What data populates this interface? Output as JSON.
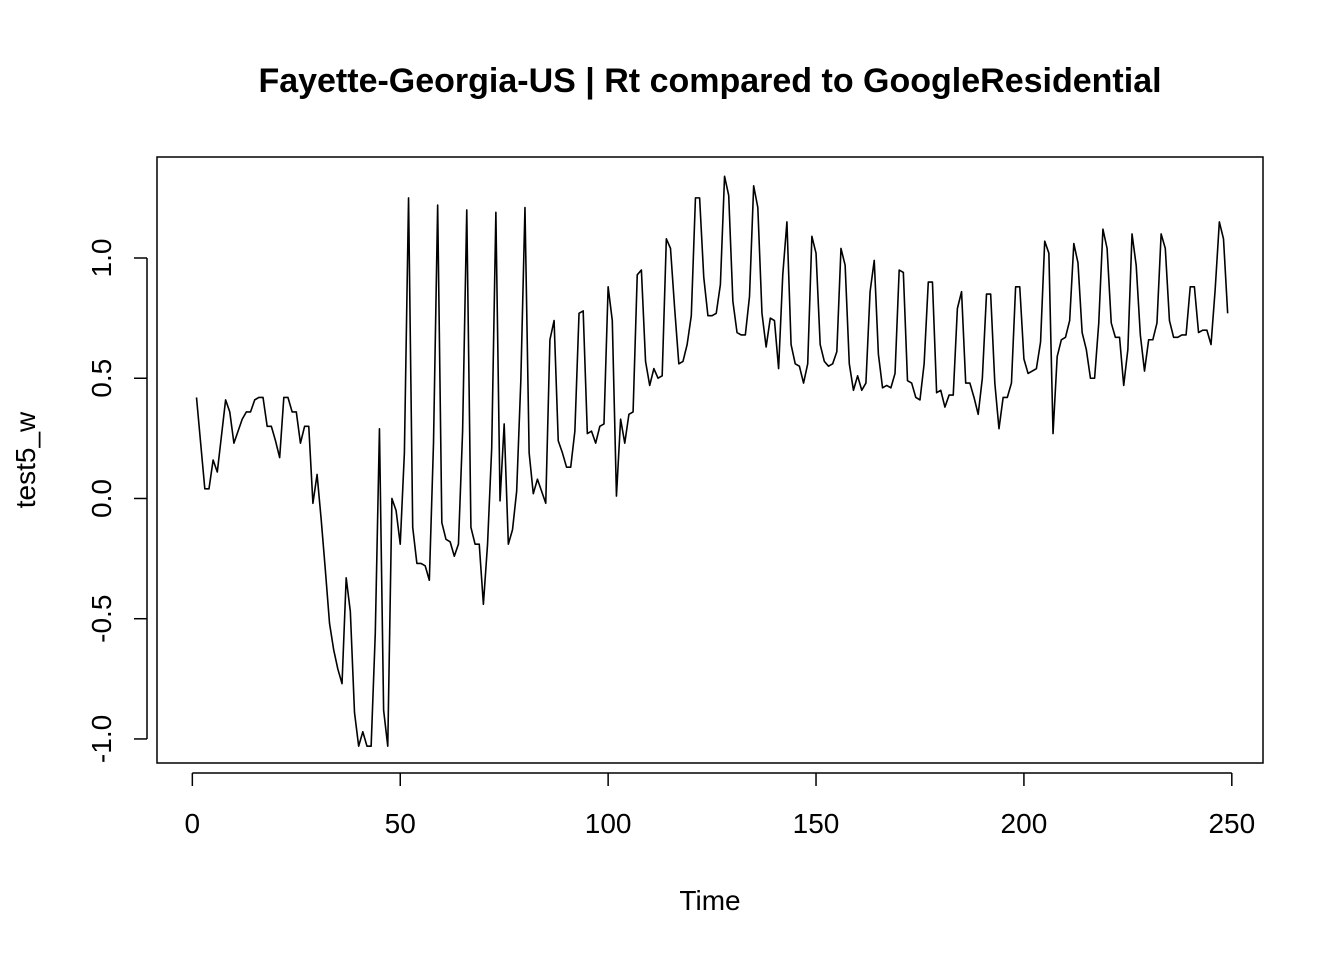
{
  "chart_data": {
    "type": "line",
    "title": "Fayette-Georgia-US | Rt compared to GoogleResidential",
    "xlabel": "Time",
    "ylabel": "test5_w",
    "xlim": [
      -8.5,
      257.5
    ],
    "ylim": [
      -1.1,
      1.42
    ],
    "x_ticks": [
      0,
      50,
      100,
      150,
      200,
      250
    ],
    "y_ticks": [
      -1.0,
      -0.5,
      0.0,
      0.5,
      1.0
    ],
    "x_tick_labels": [
      "0",
      "50",
      "100",
      "150",
      "200",
      "250"
    ],
    "y_tick_labels": [
      "-1.0",
      "-0.5",
      "0.0",
      "0.5",
      "1.0"
    ],
    "grid": false,
    "legend": "none",
    "line_color": "#000000",
    "series": [
      {
        "x_start": 1,
        "values": [
          0.42,
          0.23,
          0.04,
          0.04,
          0.16,
          0.11,
          0.26,
          0.41,
          0.36,
          0.23,
          0.28,
          0.33,
          0.36,
          0.36,
          0.41,
          0.42,
          0.42,
          0.3,
          0.3,
          0.24,
          0.17,
          0.42,
          0.42,
          0.36,
          0.36,
          0.23,
          0.3,
          0.3,
          -0.02,
          0.1,
          -0.09,
          -0.3,
          -0.52,
          -0.63,
          -0.71,
          -0.77,
          -0.33,
          -0.47,
          -0.89,
          -1.03,
          -0.97,
          -1.03,
          -1.03,
          -0.56,
          0.29,
          -0.88,
          -1.03,
          0.0,
          -0.05,
          -0.19,
          0.19,
          1.25,
          -0.12,
          -0.27,
          -0.27,
          -0.28,
          -0.34,
          0.23,
          1.22,
          -0.1,
          -0.17,
          -0.18,
          -0.24,
          -0.19,
          0.28,
          1.2,
          -0.12,
          -0.19,
          -0.19,
          -0.44,
          -0.19,
          0.21,
          1.19,
          -0.01,
          0.31,
          -0.19,
          -0.13,
          0.03,
          0.49,
          1.21,
          0.19,
          0.02,
          0.08,
          0.03,
          -0.02,
          0.66,
          0.74,
          0.24,
          0.19,
          0.13,
          0.13,
          0.28,
          0.77,
          0.78,
          0.27,
          0.28,
          0.23,
          0.3,
          0.31,
          0.88,
          0.74,
          0.01,
          0.33,
          0.23,
          0.35,
          0.36,
          0.93,
          0.95,
          0.57,
          0.47,
          0.54,
          0.5,
          0.51,
          1.08,
          1.04,
          0.79,
          0.56,
          0.57,
          0.64,
          0.76,
          1.25,
          1.25,
          0.92,
          0.76,
          0.76,
          0.77,
          0.89,
          1.34,
          1.26,
          0.82,
          0.69,
          0.68,
          0.68,
          0.84,
          1.3,
          1.21,
          0.77,
          0.63,
          0.75,
          0.74,
          0.54,
          0.93,
          1.15,
          0.64,
          0.56,
          0.55,
          0.48,
          0.56,
          1.09,
          1.02,
          0.64,
          0.57,
          0.55,
          0.56,
          0.61,
          1.04,
          0.97,
          0.56,
          0.45,
          0.51,
          0.45,
          0.48,
          0.86,
          0.99,
          0.6,
          0.46,
          0.47,
          0.46,
          0.52,
          0.95,
          0.94,
          0.49,
          0.48,
          0.42,
          0.41,
          0.56,
          0.9,
          0.9,
          0.44,
          0.45,
          0.38,
          0.43,
          0.43,
          0.79,
          0.86,
          0.48,
          0.48,
          0.42,
          0.35,
          0.5,
          0.85,
          0.85,
          0.48,
          0.29,
          0.42,
          0.42,
          0.48,
          0.88,
          0.88,
          0.58,
          0.52,
          0.53,
          0.54,
          0.65,
          1.07,
          1.02,
          0.27,
          0.59,
          0.66,
          0.67,
          0.74,
          1.06,
          0.98,
          0.69,
          0.62,
          0.5,
          0.5,
          0.73,
          1.12,
          1.04,
          0.73,
          0.67,
          0.67,
          0.47,
          0.62,
          1.1,
          0.97,
          0.68,
          0.53,
          0.66,
          0.66,
          0.73,
          1.1,
          1.04,
          0.74,
          0.67,
          0.67,
          0.68,
          0.68,
          0.88,
          0.88,
          0.69,
          0.7,
          0.7,
          0.64,
          0.87,
          1.15,
          1.08,
          0.77
        ]
      }
    ]
  }
}
